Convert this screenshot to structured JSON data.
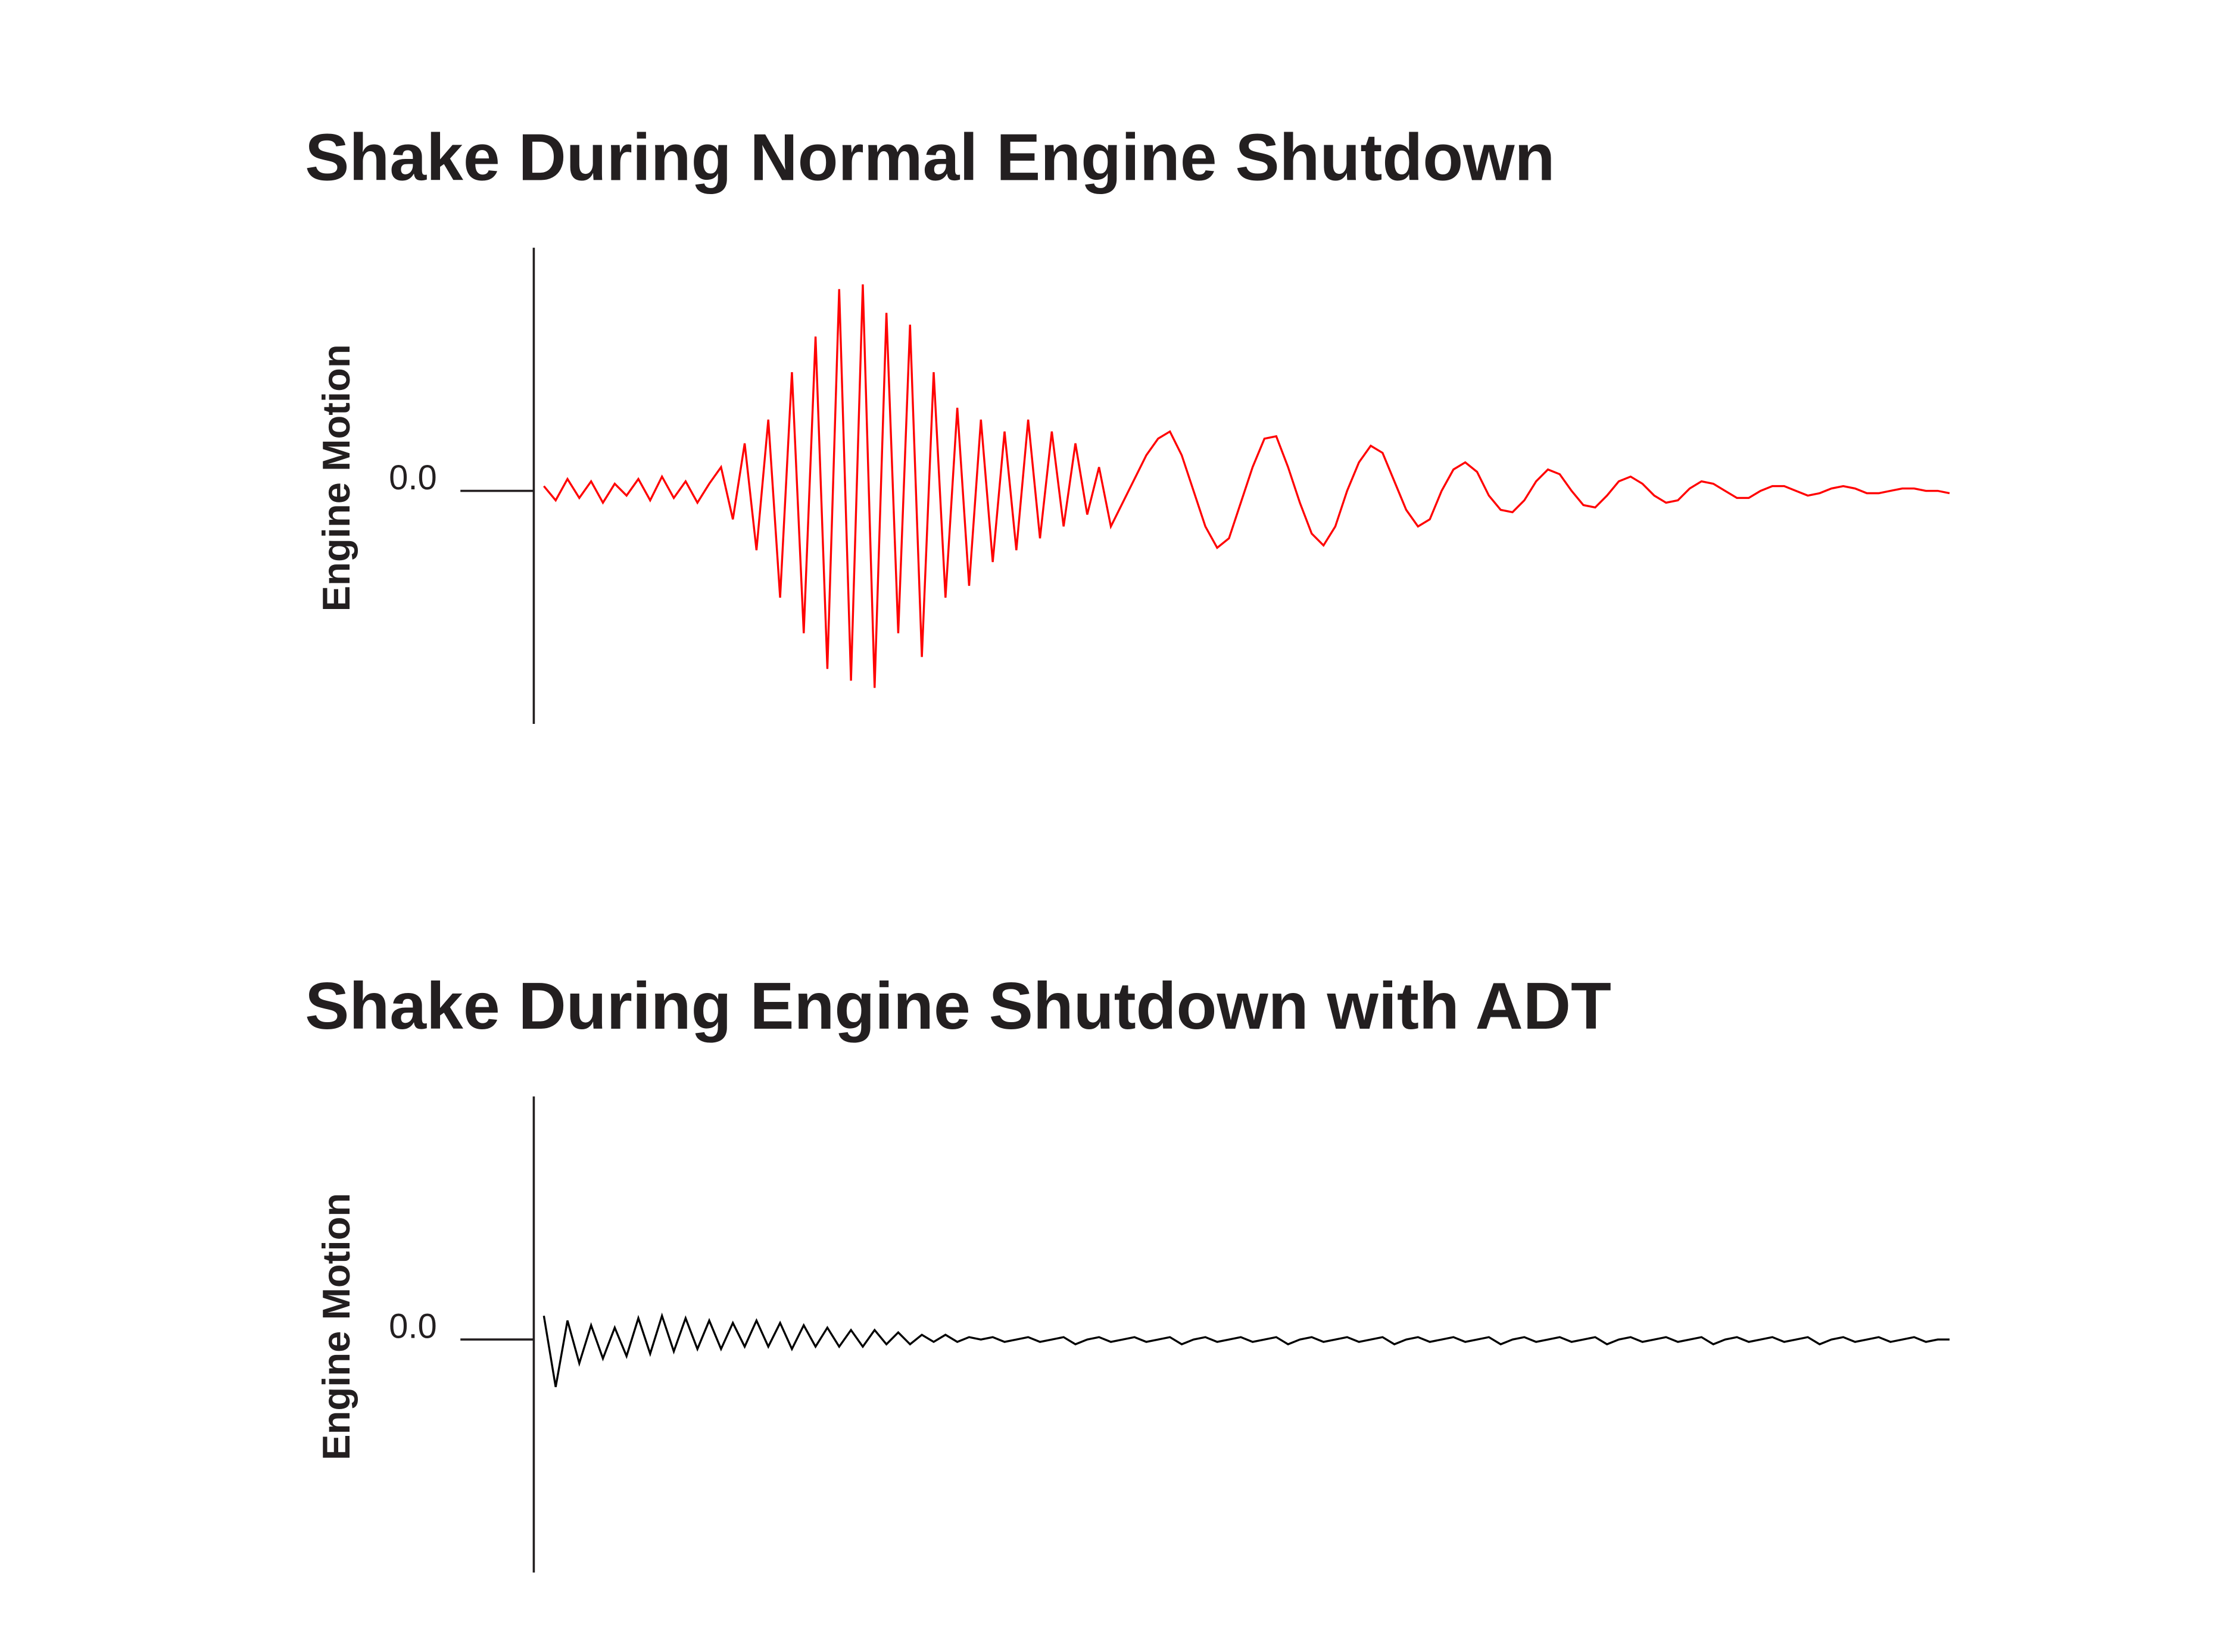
{
  "chart_data": [
    {
      "type": "line",
      "title": "Shake During Normal Engine Shutdown",
      "y_label": "Engine Motion",
      "color": "#ff0000",
      "ylim": [
        -1,
        1
      ],
      "yticks": [
        {
          "value": 0,
          "label": "0.0"
        }
      ],
      "values": [
        0.02,
        -0.04,
        0.05,
        -0.03,
        0.04,
        -0.05,
        0.03,
        -0.02,
        0.05,
        -0.04,
        0.06,
        -0.03,
        0.04,
        -0.05,
        0.03,
        0.1,
        -0.12,
        0.2,
        -0.25,
        0.3,
        -0.45,
        0.5,
        -0.6,
        0.65,
        -0.75,
        0.85,
        -0.8,
        0.87,
        -0.83,
        0.75,
        -0.6,
        0.7,
        -0.7,
        0.5,
        -0.45,
        0.35,
        -0.4,
        0.3,
        -0.3,
        0.25,
        -0.25,
        0.3,
        -0.2,
        0.25,
        -0.15,
        0.2,
        -0.1,
        0.1,
        -0.15,
        -0.05,
        0.05,
        0.15,
        0.22,
        0.25,
        0.15,
        0.0,
        -0.15,
        -0.24,
        -0.2,
        -0.05,
        0.1,
        0.22,
        0.23,
        0.1,
        -0.05,
        -0.18,
        -0.23,
        -0.15,
        0.0,
        0.12,
        0.19,
        0.16,
        0.04,
        -0.08,
        -0.15,
        -0.12,
        0.0,
        0.09,
        0.12,
        0.08,
        -0.02,
        -0.08,
        -0.09,
        -0.04,
        0.04,
        0.09,
        0.07,
        0.0,
        -0.06,
        -0.07,
        -0.02,
        0.04,
        0.06,
        0.03,
        -0.02,
        -0.05,
        -0.04,
        0.01,
        0.04,
        0.03,
        0.0,
        -0.03,
        -0.03,
        0.0,
        0.02,
        0.02,
        0.0,
        -0.02,
        -0.01,
        0.01,
        0.02,
        0.01,
        -0.01,
        -0.01,
        0.0,
        0.01,
        0.01,
        0.0,
        0.0,
        -0.01
      ]
    },
    {
      "type": "line",
      "title": "Shake During Engine Shutdown with ADT",
      "y_label": "Engine Motion",
      "color": "#000000",
      "ylim": [
        -1,
        1
      ],
      "yticks": [
        {
          "value": 0,
          "label": "0.0"
        }
      ],
      "values": [
        0.1,
        -0.2,
        0.08,
        -0.1,
        0.06,
        -0.08,
        0.05,
        -0.07,
        0.09,
        -0.06,
        0.1,
        -0.05,
        0.09,
        -0.04,
        0.08,
        -0.04,
        0.07,
        -0.03,
        0.08,
        -0.03,
        0.07,
        -0.04,
        0.06,
        -0.03,
        0.05,
        -0.03,
        0.04,
        -0.03,
        0.04,
        -0.02,
        0.03,
        -0.02,
        0.02,
        -0.01,
        0.02,
        -0.01,
        0.01,
        0.0,
        0.01,
        -0.01,
        0.0,
        0.01,
        -0.01,
        0.0,
        0.01,
        -0.02,
        0.0,
        0.01,
        -0.01,
        0.0,
        0.01,
        -0.01,
        0.0,
        0.01,
        -0.02,
        0.0,
        0.01,
        -0.01,
        0.0,
        0.01,
        -0.01,
        0.0,
        0.01,
        -0.02,
        0.0,
        0.01,
        -0.01,
        0.0,
        0.01,
        -0.01,
        0.0,
        0.01,
        -0.02,
        0.0,
        0.01,
        -0.01,
        0.0,
        0.01,
        -0.01,
        0.0,
        0.01,
        -0.02,
        0.0,
        0.01,
        -0.01,
        0.0,
        0.01,
        -0.01,
        0.0,
        0.01,
        -0.02,
        0.0,
        0.01,
        -0.01,
        0.0,
        0.01,
        -0.01,
        0.0,
        0.01,
        -0.02,
        0.0,
        0.01,
        -0.01,
        0.0,
        0.01,
        -0.01,
        0.0,
        0.01,
        -0.02,
        0.0,
        0.01,
        -0.01,
        0.0,
        0.01,
        -0.01,
        0.0,
        0.01,
        -0.01,
        0.0,
        0.0
      ]
    }
  ]
}
